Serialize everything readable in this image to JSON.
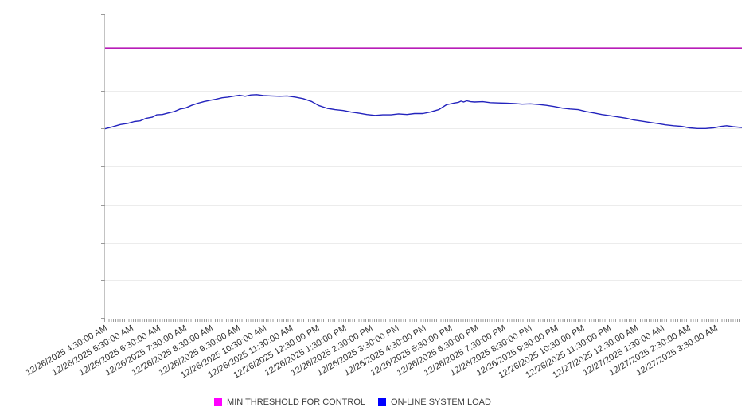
{
  "chart_data": {
    "type": "line",
    "title": "",
    "x_tick_labels": [
      "12/26/2025 4:30:00 AM",
      "12/26/2025 5:30:00 AM",
      "12/26/2025 6:30:00 AM",
      "12/26/2025 7:30:00 AM",
      "12/26/2025 8:30:00 AM",
      "12/26/2025 9:30:00 AM",
      "12/26/2025 10:30:00 AM",
      "12/26/2025 11:30:00 AM",
      "12/26/2025 12:30:00 PM",
      "12/26/2025 1:30:00 PM",
      "12/26/2025 2:30:00 PM",
      "12/26/2025 3:30:00 PM",
      "12/26/2025 4:30:00 PM",
      "12/26/2025 5:30:00 PM",
      "12/26/2025 6:30:00 PM",
      "12/26/2025 7:30:00 PM",
      "12/26/2025 8:30:00 PM",
      "12/26/2025 9:30:00 PM",
      "12/26/2025 10:30:00 PM",
      "12/26/2025 11:30:00 PM",
      "12/27/2025 12:30:00 AM",
      "12/27/2025 1:30:00 AM",
      "12/27/2025 2:30:00 AM",
      "12/27/2025 3:30:00 AM"
    ],
    "y_tick_labels": [],
    "ylim": [
      0,
      100
    ],
    "grid": "horizontal",
    "grid_intervals": 8,
    "x_minor_ticks_per_hour": 12,
    "legend_position": "bottom-center",
    "series": [
      {
        "name": "MIN THRESHOLD FOR CONTROL",
        "type": "constant-line",
        "swatch_color": "#ff00ff",
        "line_color": "#b81cb8",
        "value": 88.9
      },
      {
        "name": "ON-LINE SYSTEM LOAD",
        "type": "line",
        "swatch_color": "#0000ff",
        "line_color": "#2323bd",
        "x": [
          0,
          1.1,
          2.4,
          3.6,
          4.6,
          5.5,
          6.4,
          7.4,
          8.1,
          9,
          9.9,
          10.9,
          11.8,
          12.6,
          13.6,
          14.6,
          15.5,
          16.4,
          17.4,
          18.4,
          19.3,
          20.1,
          21.1,
          22,
          22.9,
          23.8,
          24.9,
          26.1,
          27.4,
          28.6,
          29.9,
          31.1,
          32.4,
          33.6,
          34.9,
          36.1,
          37.4,
          38.6,
          39.9,
          41.1,
          42.4,
          43.6,
          44.9,
          46.1,
          47.4,
          48.6,
          49.9,
          51.1,
          52.4,
          53.6,
          54.9,
          55.5,
          55.9,
          56.3,
          56.8,
          57.4,
          58,
          59.3,
          60.5,
          61.8,
          63,
          64.3,
          65.5,
          66.8,
          68,
          69.3,
          70.5,
          71.8,
          73,
          74.3,
          75.5,
          76.8,
          78,
          79.3,
          80.5,
          81.8,
          83,
          84.3,
          85.5,
          86.8,
          88,
          89.3,
          90.5,
          91.8,
          93,
          94.3,
          95.5,
          96.8,
          97.6,
          98.6,
          100
        ],
        "values": [
          62.4,
          63,
          63.8,
          64.2,
          64.8,
          65,
          65.8,
          66.2,
          67,
          67.1,
          67.6,
          68.1,
          68.9,
          69.2,
          70.1,
          70.8,
          71.3,
          71.7,
          72.1,
          72.6,
          72.8,
          73.1,
          73.4,
          73.1,
          73.5,
          73.6,
          73.3,
          73.2,
          73.1,
          73.2,
          72.8,
          72.3,
          71.4,
          70,
          69.1,
          68.7,
          68.4,
          67.9,
          67.5,
          67.1,
          66.8,
          67,
          67,
          67.3,
          67.1,
          67.4,
          67.4,
          67.9,
          68.7,
          70.3,
          70.9,
          71.1,
          71.5,
          71.2,
          71.6,
          71.3,
          71.2,
          71.3,
          71,
          70.9,
          70.8,
          70.7,
          70.5,
          70.6,
          70.4,
          70.1,
          69.7,
          69.2,
          68.9,
          68.7,
          68.1,
          67.6,
          67.1,
          66.7,
          66.3,
          65.9,
          65.3,
          64.9,
          64.5,
          64.1,
          63.7,
          63.4,
          63.2,
          62.7,
          62.5,
          62.5,
          62.7,
          63.2,
          63.4,
          63.1,
          62.8
        ]
      }
    ]
  }
}
